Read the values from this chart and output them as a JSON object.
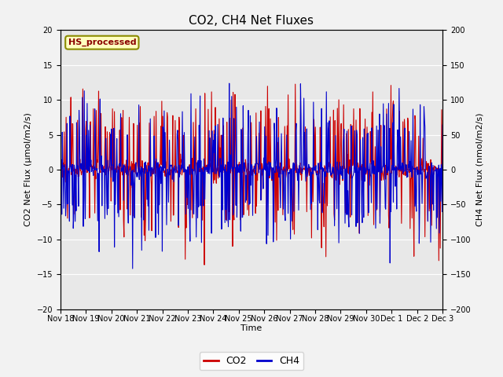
{
  "title": "CO2, CH4 Net Fluxes",
  "xlabel": "Time",
  "ylabel_left": "CO2 Net Flux (μmol/m2/s)",
  "ylabel_right": "CH4 Net Flux (nmol/m2/s)",
  "ylim_left": [
    -20,
    20
  ],
  "ylim_right": [
    -200,
    200
  ],
  "yticks_left": [
    -20,
    -15,
    -10,
    -5,
    0,
    5,
    10,
    15,
    20
  ],
  "yticks_right": [
    -200,
    -150,
    -100,
    -50,
    0,
    50,
    100,
    150,
    200
  ],
  "xtick_labels": [
    "Nov 18",
    "Nov 19",
    "Nov 20",
    "Nov 21",
    "Nov 22",
    "Nov 23",
    "Nov 24",
    "Nov 25",
    "Nov 26",
    "Nov 27",
    "Nov 28",
    "Nov 29",
    "Nov 30",
    "Dec 1",
    "Dec 2",
    "Dec 3"
  ],
  "co2_color": "#CC0000",
  "ch4_color": "#0000CC",
  "legend_label": "HS_processed",
  "legend_bg": "#FFFFC0",
  "legend_border": "#8B8B00",
  "background_color": "#E8E8E8",
  "grid_color": "#FFFFFF",
  "co2_linewidth": 0.8,
  "ch4_linewidth": 0.8,
  "title_fontsize": 11,
  "axis_label_fontsize": 8,
  "tick_fontsize": 7,
  "annot_fontsize": 8,
  "legend_fontsize": 9,
  "n_points": 800,
  "seed": 42
}
